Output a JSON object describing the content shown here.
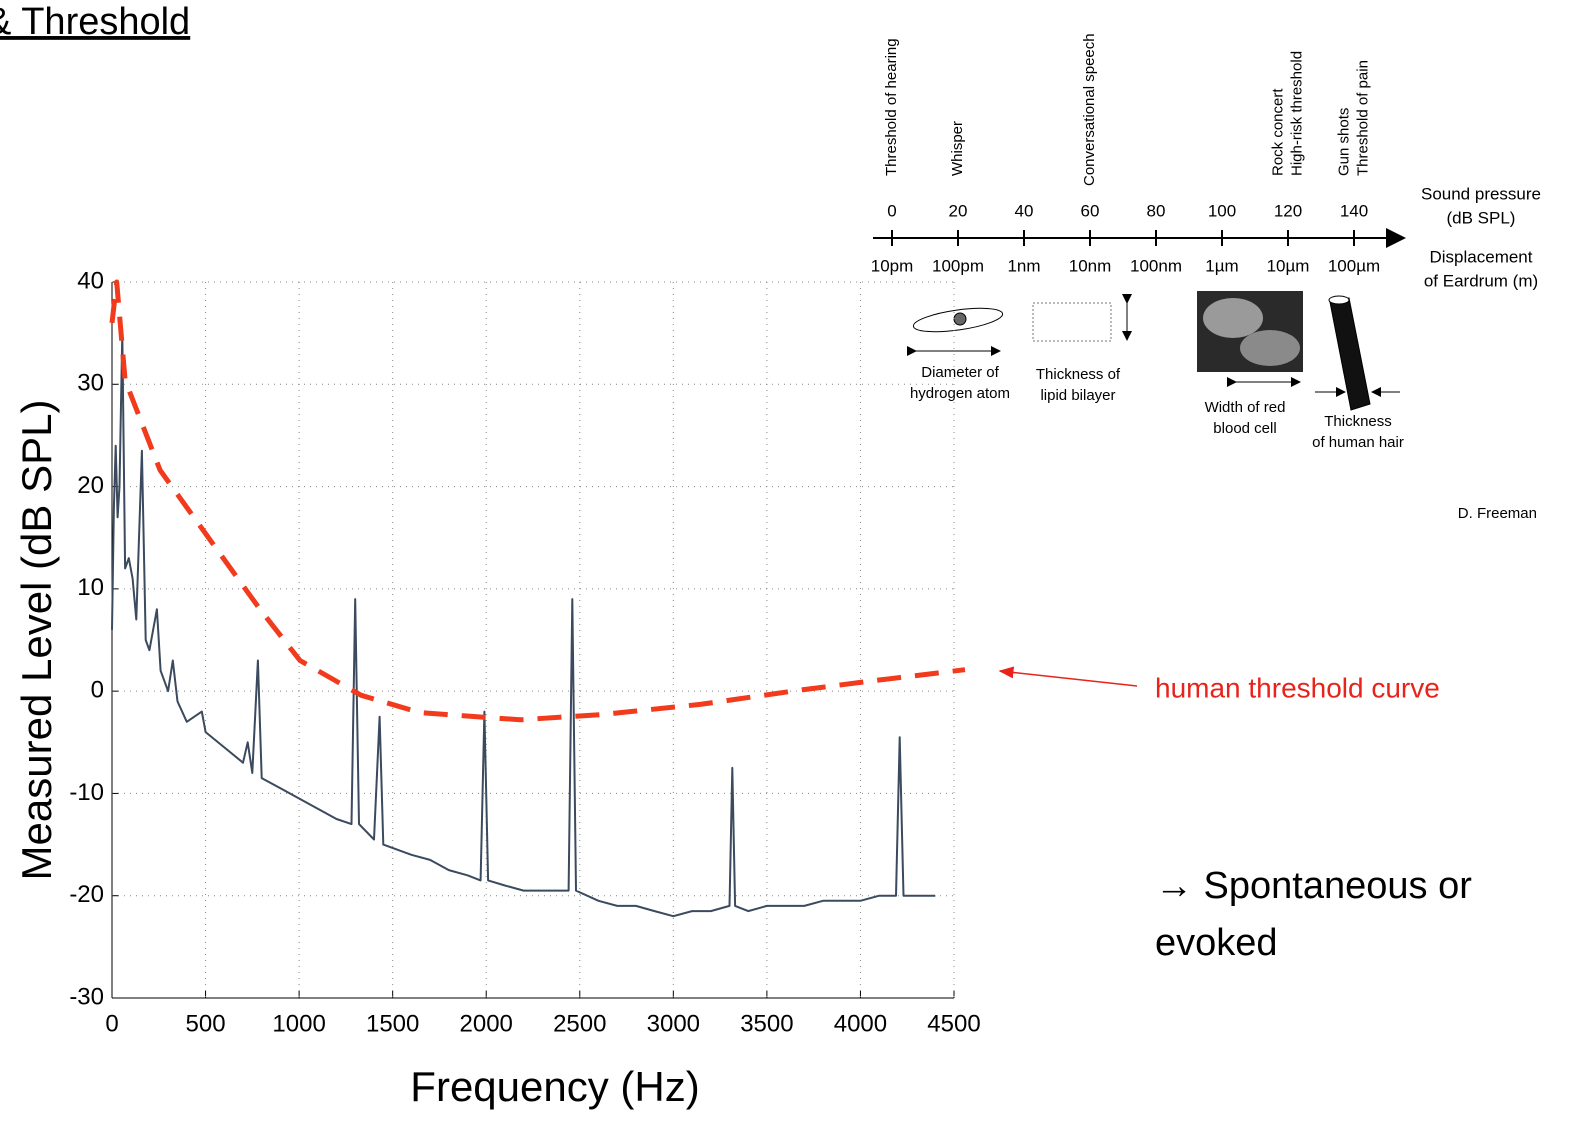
{
  "header": {
    "title": "& Threshold"
  },
  "chart_data": {
    "type": "line",
    "x_label": "Frequency (Hz)",
    "y_label": "Measured Level (dB SPL)",
    "xlim": [
      0,
      4500
    ],
    "ylim": [
      -30,
      40
    ],
    "xticks": [
      0,
      500,
      1000,
      1500,
      2000,
      2500,
      3000,
      3500,
      4000,
      4500
    ],
    "yticks": [
      -30,
      -20,
      -10,
      0,
      10,
      20,
      30,
      40
    ],
    "grid": true,
    "series": [
      {
        "color": "#3b4a5e",
        "dashed": false,
        "x": [
          0,
          10,
          20,
          30,
          40,
          55,
          70,
          90,
          110,
          130,
          160,
          180,
          200,
          240,
          260,
          300,
          325,
          350,
          400,
          480,
          500,
          600,
          700,
          725,
          750,
          780,
          800,
          900,
          1000,
          1100,
          1200,
          1280,
          1300,
          1320,
          1400,
          1430,
          1450,
          1600,
          1700,
          1800,
          1900,
          1970,
          1990,
          2010,
          2100,
          2200,
          2300,
          2440,
          2460,
          2480,
          2600,
          2700,
          2800,
          2900,
          3000,
          3100,
          3200,
          3300,
          3315,
          3330,
          3400,
          3500,
          3600,
          3700,
          3800,
          3900,
          4000,
          4100,
          4190,
          4210,
          4230,
          4300,
          4400
        ],
        "values": [
          6,
          18,
          24,
          17,
          20,
          35,
          12,
          13,
          11,
          7,
          23.5,
          5,
          4,
          8,
          2,
          0,
          3,
          -1,
          -3,
          -2,
          -4,
          -5.5,
          -7,
          -5,
          -8,
          3,
          -8.5,
          -9.5,
          -10.5,
          -11.5,
          -12.5,
          -13,
          9,
          -13,
          -14.5,
          -2.5,
          -15,
          -16,
          -16.5,
          -17.5,
          -18,
          -18.5,
          -2,
          -18.5,
          -19,
          -19.5,
          -19.5,
          -19.5,
          9,
          -19.5,
          -20.5,
          -21,
          -21,
          -21.5,
          -22,
          -21.5,
          -21.5,
          -21,
          -7.5,
          -21,
          -21.5,
          -21,
          -21,
          -21,
          -20.5,
          -20.5,
          -20.5,
          -20,
          -20,
          -4.5,
          -20,
          -20,
          -20
        ]
      },
      {
        "color": "#f23a1c",
        "dashed": true,
        "x": [
          0,
          25,
          70,
          257,
          524,
          791,
          1005,
          1330,
          1646,
          2181,
          2608,
          3143,
          3677,
          4105,
          4559
        ],
        "values": [
          36,
          40,
          30.4,
          21.6,
          14.8,
          8,
          3,
          -0.4,
          -2.1,
          -2.8,
          -2.3,
          -1.3,
          0.1,
          1.1,
          2.1
        ]
      }
    ]
  },
  "annotations": {
    "threshold_label": "human threshold curve",
    "otoacoustic_note": [
      "→ Spontaneous or",
      "evoked"
    ]
  },
  "scale_diagram": {
    "db_ticks": [
      0,
      20,
      40,
      60,
      80,
      100,
      120,
      140
    ],
    "displacement_ticks": [
      "10pm",
      "100pm",
      "1nm",
      "10nm",
      "100nm",
      "1µm",
      "10µm",
      "100µm"
    ],
    "sound_pressure_label": [
      "Sound pressure",
      "(dB SPL)"
    ],
    "displacement_label": [
      "Displacement",
      "of Eardrum (m)"
    ],
    "events": [
      {
        "at": 0,
        "lines": [
          "Threshold of hearing"
        ]
      },
      {
        "at": 20,
        "lines": [
          "Whisper"
        ]
      },
      {
        "at": 60,
        "lines": [
          "Conversational speech"
        ]
      },
      {
        "at": 120,
        "lines": [
          "Rock concert",
          "High-risk threshold"
        ]
      },
      {
        "at": 140,
        "lines": [
          "Gun shots",
          "Threshold of pain"
        ]
      }
    ],
    "examples": [
      [
        "Diameter of",
        "hydrogen atom"
      ],
      [
        "Thickness of",
        "lipid bilayer"
      ],
      [
        "Width of red",
        "blood cell"
      ],
      [
        "Thickness",
        "of human hair"
      ]
    ],
    "credit": "D. Freeman"
  }
}
